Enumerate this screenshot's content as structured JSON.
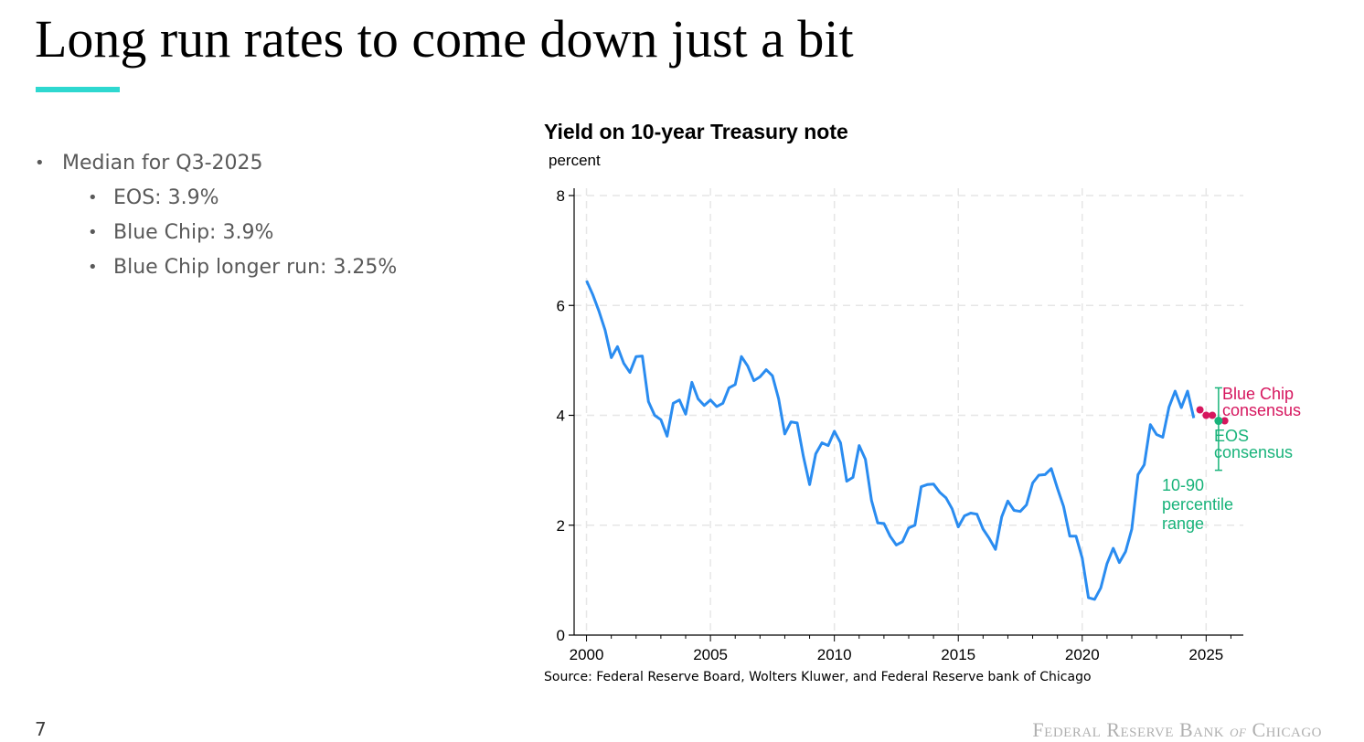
{
  "slide": {
    "title": "Long run rates to come down just a bit",
    "page_number": "7",
    "footer_logo": {
      "part1": "Federal Reserve Bank",
      "of": "of",
      "part2": "Chicago"
    },
    "accent_color": "#2ed8d0"
  },
  "bullets": {
    "main": "Median for Q3-2025",
    "sub": [
      "EOS: 3.9%",
      "Blue Chip: 3.9%",
      "Blue Chip longer run: 3.25%"
    ]
  },
  "chart_data": {
    "type": "line",
    "title": "Yield on 10-year Treasury note",
    "ylabel": "percent",
    "source": "Source: Federal Reserve Board, Wolters Kluwer, and Federal Reserve bank of Chicago",
    "ylim": [
      0,
      8
    ],
    "xlim": [
      1999.5,
      2026.5
    ],
    "yticks": [
      0,
      2,
      4,
      6,
      8
    ],
    "xticks": [
      2000,
      2005,
      2010,
      2015,
      2020,
      2025
    ],
    "grid": true,
    "colors": {
      "line": "#2a8cf0",
      "blue_chip": "#d6165e",
      "eos": "#18b37a"
    },
    "series": [
      {
        "color": "#2a8cf0",
        "x": [
          2000.0,
          2000.25,
          2000.5,
          2000.75,
          2001.0,
          2001.25,
          2001.5,
          2001.75,
          2002.0,
          2002.25,
          2002.5,
          2002.75,
          2003.0,
          2003.25,
          2003.5,
          2003.75,
          2004.0,
          2004.25,
          2004.5,
          2004.75,
          2005.0,
          2005.25,
          2005.5,
          2005.75,
          2006.0,
          2006.25,
          2006.5,
          2006.75,
          2007.0,
          2007.25,
          2007.5,
          2007.75,
          2008.0,
          2008.25,
          2008.5,
          2008.75,
          2009.0,
          2009.25,
          2009.5,
          2009.75,
          2010.0,
          2010.25,
          2010.5,
          2010.75,
          2011.0,
          2011.25,
          2011.5,
          2011.75,
          2012.0,
          2012.25,
          2012.5,
          2012.75,
          2013.0,
          2013.25,
          2013.5,
          2013.75,
          2014.0,
          2014.25,
          2014.5,
          2014.75,
          2015.0,
          2015.25,
          2015.5,
          2015.75,
          2016.0,
          2016.25,
          2016.5,
          2016.75,
          2017.0,
          2017.25,
          2017.5,
          2017.75,
          2018.0,
          2018.25,
          2018.5,
          2018.75,
          2019.0,
          2019.25,
          2019.5,
          2019.75,
          2020.0,
          2020.25,
          2020.5,
          2020.75,
          2021.0,
          2021.25,
          2021.5,
          2021.75,
          2022.0,
          2022.25,
          2022.5,
          2022.75,
          2023.0,
          2023.25,
          2023.5,
          2023.75,
          2024.0,
          2024.25,
          2024.5
        ],
        "values": [
          6.45,
          6.2,
          5.9,
          5.55,
          5.05,
          5.25,
          4.95,
          4.78,
          5.07,
          5.08,
          4.25,
          4.0,
          3.92,
          3.62,
          4.22,
          4.28,
          4.02,
          4.6,
          4.3,
          4.18,
          4.28,
          4.16,
          4.22,
          4.5,
          4.56,
          5.07,
          4.9,
          4.63,
          4.7,
          4.83,
          4.72,
          4.3,
          3.66,
          3.88,
          3.86,
          3.25,
          2.74,
          3.3,
          3.5,
          3.45,
          3.71,
          3.5,
          2.8,
          2.87,
          3.45,
          3.2,
          2.45,
          2.04,
          2.03,
          1.8,
          1.64,
          1.7,
          1.95,
          2.0,
          2.7,
          2.74,
          2.75,
          2.6,
          2.5,
          2.3,
          1.97,
          2.17,
          2.22,
          2.2,
          1.93,
          1.76,
          1.56,
          2.15,
          2.44,
          2.27,
          2.25,
          2.37,
          2.77,
          2.91,
          2.92,
          3.03,
          2.67,
          2.34,
          1.8,
          1.8,
          1.4,
          0.68,
          0.65,
          0.86,
          1.3,
          1.58,
          1.32,
          1.52,
          1.93,
          2.92,
          3.1,
          3.83,
          3.65,
          3.6,
          4.15,
          4.44,
          4.14,
          4.44,
          3.95
        ]
      }
    ],
    "forecasts": {
      "blue_chip": {
        "label_line1": "Blue Chip",
        "label_line2": "consensus",
        "x": [
          2024.75,
          2025.0,
          2025.25,
          2025.75
        ],
        "values": [
          4.1,
          4.0,
          4.0,
          3.9
        ]
      },
      "eos": {
        "label_line1": "EOS",
        "label_line2": "consensus",
        "x": 2025.5,
        "value": 3.9,
        "range_low": 3.0,
        "range_high": 4.5
      },
      "range_label": [
        "10-90",
        "percentile",
        "range"
      ]
    }
  }
}
